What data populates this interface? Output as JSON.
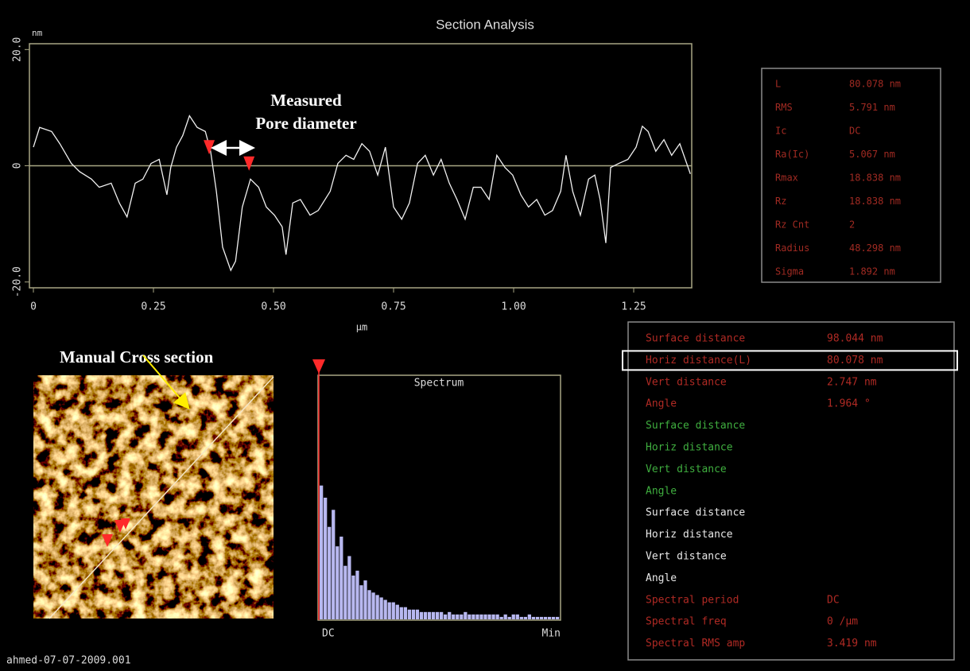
{
  "window_title": "Section Analysis",
  "chart_data": {
    "type": "line",
    "y_unit": "nm",
    "x_label": "µm",
    "xlim": [
      0,
      1.37
    ],
    "ylim": [
      -21,
      21
    ],
    "xticks": [
      0,
      0.25,
      {
        "value": 0.5,
        "label": "0.50"
      },
      0.75,
      {
        "value": 1.0,
        "label": "1.00"
      },
      1.25
    ],
    "yticks": [
      {
        "value": 20,
        "label": "20.0"
      },
      0,
      {
        "value": -20,
        "label": "-20.0"
      }
    ],
    "x": [
      0,
      0.013,
      0.038,
      0.055,
      0.079,
      0.096,
      0.121,
      0.137,
      0.162,
      0.179,
      0.195,
      0.212,
      0.228,
      0.245,
      0.262,
      0.278,
      0.286,
      0.298,
      0.311,
      0.325,
      0.341,
      0.358,
      0.369,
      0.381,
      0.394,
      0.411,
      0.421,
      0.435,
      0.452,
      0.469,
      0.485,
      0.502,
      0.518,
      0.526,
      0.54,
      0.556,
      0.576,
      0.593,
      0.618,
      0.634,
      0.651,
      0.667,
      0.684,
      0.7,
      0.717,
      0.733,
      0.75,
      0.767,
      0.783,
      0.8,
      0.816,
      0.833,
      0.849,
      0.866,
      0.882,
      0.899,
      0.916,
      0.932,
      0.949,
      0.965,
      0.982,
      0.998,
      1.015,
      1.031,
      1.048,
      1.065,
      1.081,
      1.098,
      1.109,
      1.123,
      1.139,
      1.156,
      1.169,
      1.18,
      1.192,
      1.202,
      1.219,
      1.238,
      1.255,
      1.268,
      1.28,
      1.296,
      1.313,
      1.329,
      1.346,
      1.368
    ],
    "series": [
      {
        "color": "#f0f0f0",
        "values": [
          3.2,
          6.6,
          5.9,
          3.8,
          0.4,
          -1,
          -2.3,
          -3.7,
          -3,
          -6.4,
          -8.8,
          -3,
          -2.3,
          0.4,
          1.1,
          -5,
          -0.3,
          3.2,
          5.2,
          8.6,
          6.6,
          5.9,
          2.5,
          -4.4,
          -14,
          -18,
          -16.4,
          -7.1,
          -2.3,
          -3.7,
          -7.1,
          -8.5,
          -10.5,
          -15.3,
          -6.4,
          -5.8,
          -8.5,
          -7.7,
          -4.4,
          0.4,
          1.8,
          1.1,
          3.8,
          2.5,
          -1.6,
          3.2,
          -7.1,
          -9.2,
          -6.4,
          0.4,
          1.8,
          -1.6,
          1.1,
          -3,
          -5.8,
          -9.2,
          -3.7,
          -3.7,
          -5.8,
          1.8,
          -0.3,
          -1.6,
          -5,
          -7.1,
          -5.8,
          -8.5,
          -7.7,
          -4.4,
          1.8,
          -4.4,
          -8.5,
          -2.3,
          -1.6,
          -5.8,
          -13.3,
          -0.3,
          0.4,
          1.1,
          3.2,
          6.8,
          5.9,
          2.5,
          4.5,
          1.8,
          3.8,
          -1.4
        ]
      }
    ],
    "cursors": {
      "color": "#ff2a2a",
      "x": [
        0.366,
        0.449
      ],
      "y": [
        2.5,
        -0.3
      ]
    }
  },
  "annotations": {
    "pore_line1": "Measured",
    "pore_line2": "Pore diameter",
    "cross_section": "Manual Cross section"
  },
  "spectrum": {
    "title": "Spectrum",
    "start_label": "DC",
    "end_label": "Min",
    "color": "#b8b8f0",
    "ylim": [
      0,
      100
    ],
    "values": [
      55,
      50,
      38,
      45,
      30,
      34,
      22,
      26,
      18,
      20,
      14,
      16,
      12,
      11,
      10,
      9,
      8,
      7,
      7,
      6,
      5,
      5,
      4,
      4,
      4,
      3,
      3,
      3,
      3,
      3,
      3,
      2,
      3,
      2,
      2,
      2,
      3,
      2,
      2,
      2,
      2,
      2,
      2,
      2,
      2,
      1,
      2,
      1,
      2,
      2,
      1,
      1,
      2,
      1,
      1,
      1,
      1,
      1,
      1,
      1
    ]
  },
  "stats": {
    "color": "#a02a22",
    "rows": [
      [
        "L",
        "80.078 nm"
      ],
      [
        "RMS",
        "5.791 nm"
      ],
      [
        "Ic",
        "DC"
      ],
      [
        "Ra(Ic)",
        "5.067 nm"
      ],
      [
        "Rmax",
        "18.838 nm"
      ],
      [
        "Rz",
        "18.838 nm"
      ],
      [
        "Rz Cnt",
        "2"
      ],
      [
        "Radius",
        "48.298 nm"
      ],
      [
        "Sigma",
        "1.892 nm"
      ]
    ]
  },
  "measurements": {
    "highlight_row": 1,
    "rows": [
      {
        "label": "Surface distance",
        "value": "98.044 nm",
        "color": "#b02a24"
      },
      {
        "label": "Horiz distance(L)",
        "value": "80.078 nm",
        "color": "#b02a24"
      },
      {
        "label": "Vert distance",
        "value": "2.747 nm",
        "color": "#b02a24"
      },
      {
        "label": "Angle",
        "value": "1.964 °",
        "color": "#b02a24"
      },
      {
        "label": "Surface distance",
        "color": "#3fae3f"
      },
      {
        "label": "Horiz distance",
        "color": "#3fae3f"
      },
      {
        "label": "Vert distance",
        "color": "#3fae3f"
      },
      {
        "label": "Angle",
        "color": "#3fae3f"
      },
      {
        "label": "Surface distance",
        "color": "#e8e8e8"
      },
      {
        "label": "Horiz distance",
        "color": "#e8e8e8"
      },
      {
        "label": "Vert distance",
        "color": "#e8e8e8"
      },
      {
        "label": "Angle",
        "color": "#e8e8e8"
      },
      {
        "label": "Spectral period",
        "value": "DC",
        "color": "#b02a24"
      },
      {
        "label": "Spectral freq",
        "value": "0 /µm",
        "color": "#b02a24"
      },
      {
        "label": "Spectral RMS amp",
        "value": "3.419 nm",
        "color": "#b02a24"
      }
    ]
  },
  "file_name": "ahmed-07-07-2009.001"
}
